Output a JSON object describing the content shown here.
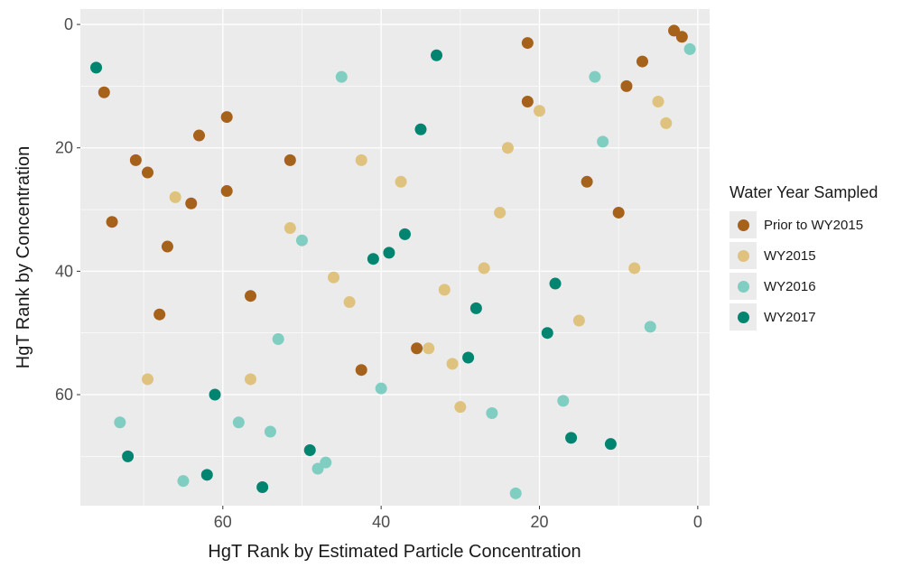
{
  "chart_data": {
    "type": "scatter",
    "title": "",
    "xlabel": "HgT Rank by Estimated Particle Concentration",
    "ylabel": "HgT Rank by Concentration",
    "xlim": [
      78,
      -1.5
    ],
    "ylim": [
      78,
      -2.5
    ],
    "x_reversed": true,
    "y_reversed": true,
    "x_ticks": [
      60,
      40,
      20,
      0
    ],
    "y_ticks": [
      0,
      20,
      40,
      60
    ],
    "grid": true,
    "legend": {
      "title": "Water Year Sampled",
      "position": "right"
    },
    "series": [
      {
        "name": "Prior to WY2015",
        "color": "#a6611a",
        "points": [
          [
            3,
            1
          ],
          [
            2,
            2
          ],
          [
            21.5,
            3
          ],
          [
            7,
            6
          ],
          [
            9,
            10
          ],
          [
            75,
            11
          ],
          [
            21.5,
            12.5
          ],
          [
            59.5,
            15
          ],
          [
            63,
            18
          ],
          [
            71,
            22
          ],
          [
            51.5,
            22
          ],
          [
            69.5,
            24
          ],
          [
            14,
            25.5
          ],
          [
            59.5,
            27
          ],
          [
            64,
            29
          ],
          [
            10,
            30.5
          ],
          [
            74,
            32
          ],
          [
            67,
            36
          ],
          [
            56.5,
            44
          ],
          [
            68,
            47
          ],
          [
            35.5,
            52.5
          ],
          [
            42.5,
            56
          ]
        ]
      },
      {
        "name": "WY2015",
        "color": "#dfc27d",
        "points": [
          [
            5,
            12.5
          ],
          [
            20,
            14
          ],
          [
            4,
            16
          ],
          [
            24,
            20
          ],
          [
            42.5,
            22
          ],
          [
            37.5,
            25.5
          ],
          [
            66,
            28
          ],
          [
            25,
            30.5
          ],
          [
            51.5,
            33
          ],
          [
            8,
            39.5
          ],
          [
            27,
            39.5
          ],
          [
            46,
            41
          ],
          [
            44,
            45
          ],
          [
            32,
            43
          ],
          [
            15,
            48
          ],
          [
            34,
            52.5
          ],
          [
            31,
            55
          ],
          [
            69.5,
            57.5
          ],
          [
            56.5,
            57.5
          ],
          [
            30,
            62
          ]
        ]
      },
      {
        "name": "WY2016",
        "color": "#80cdc1",
        "points": [
          [
            1,
            4
          ],
          [
            13,
            8.5
          ],
          [
            45,
            8.5
          ],
          [
            12,
            19
          ],
          [
            50,
            35
          ],
          [
            6,
            49
          ],
          [
            53,
            51
          ],
          [
            40,
            59
          ],
          [
            17,
            61
          ],
          [
            26,
            63
          ],
          [
            73,
            64.5
          ],
          [
            58,
            64.5
          ],
          [
            54,
            66
          ],
          [
            47,
            71
          ],
          [
            48,
            72
          ],
          [
            65,
            74
          ],
          [
            23,
            76
          ]
        ]
      },
      {
        "name": "WY2017",
        "color": "#018571",
        "points": [
          [
            76,
            7
          ],
          [
            33,
            5
          ],
          [
            35,
            17
          ],
          [
            37,
            34
          ],
          [
            39,
            37
          ],
          [
            41,
            38
          ],
          [
            18,
            42
          ],
          [
            28,
            46
          ],
          [
            19,
            50
          ],
          [
            29,
            54
          ],
          [
            61,
            60
          ],
          [
            16,
            67
          ],
          [
            11,
            68
          ],
          [
            49,
            69
          ],
          [
            72,
            70
          ],
          [
            62,
            73
          ],
          [
            55,
            75
          ]
        ]
      }
    ]
  }
}
